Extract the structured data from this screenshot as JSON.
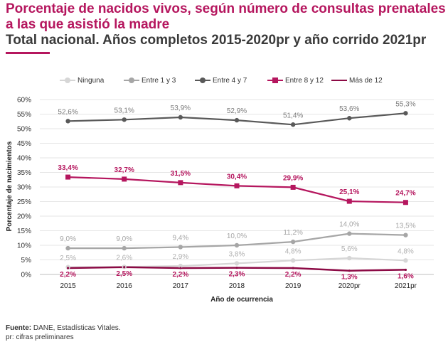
{
  "title": {
    "line1": "Porcentaje de nacidos vivos, según número de consultas prenatales",
    "line2": "a las que asistió la madre",
    "subtitle": "Total nacional. Años completos 2015-2020pr y año corrido 2021pr"
  },
  "footer": {
    "source_label": "Fuente:",
    "source_text": " DANE, Estadísticas Vitales.",
    "note": "pr: cifras preliminares"
  },
  "colors": {
    "title": "#b5165e",
    "subtitle": "#3a3a3a",
    "grid": "#e6e6e6"
  },
  "chart_data": {
    "type": "line",
    "xlabel": "Año de ocurrencia",
    "ylabel": "Porcentaje de nacimientos",
    "x": [
      "2015",
      "2016",
      "2017",
      "2018",
      "2019",
      "2020pr",
      "2021pr"
    ],
    "ylim": [
      0,
      60
    ],
    "yticks": [
      "0%",
      "5%",
      "10%",
      "15%",
      "20%",
      "25%",
      "30%",
      "35%",
      "40%",
      "45%",
      "50%",
      "55%",
      "60%"
    ],
    "grid": true,
    "legend_position": "top",
    "series": [
      {
        "name": "Ninguna",
        "color": "#d6d6d6",
        "values": [
          2.5,
          2.6,
          2.9,
          3.8,
          4.8,
          5.6,
          4.8
        ],
        "labels": [
          "2,5%",
          "2,6%",
          "2,9%",
          "3,8%",
          "4,8%",
          "5,6%",
          "4,8%"
        ],
        "label_pos": "above",
        "label_color": "#b0b0b0"
      },
      {
        "name": "Entre 1 y 3",
        "color": "#a6a6a6",
        "values": [
          9.0,
          9.0,
          9.4,
          10.0,
          11.2,
          14.0,
          13.5
        ],
        "labels": [
          "9,0%",
          "9,0%",
          "9,4%",
          "10,0%",
          "11,2%",
          "14,0%",
          "13,5%"
        ],
        "label_pos": "above",
        "label_color": "#a6a6a6"
      },
      {
        "name": "Entre 4 y 7",
        "color": "#595959",
        "values": [
          52.6,
          53.1,
          53.9,
          52.9,
          51.4,
          53.6,
          55.3
        ],
        "labels": [
          "52,6%",
          "53,1%",
          "53,9%",
          "52,9%",
          "51,4%",
          "53,6%",
          "55,3%"
        ],
        "label_pos": "above",
        "label_color": "#7a7a7a"
      },
      {
        "name": "Entre 8 y 12",
        "color": "#b5165e",
        "values": [
          33.4,
          32.7,
          31.5,
          30.4,
          29.9,
          25.1,
          24.7
        ],
        "labels": [
          "33,4%",
          "32,7%",
          "31,5%",
          "30,4%",
          "29,9%",
          "25,1%",
          "24,7%"
        ],
        "label_pos": "above",
        "label_color": "#b5165e"
      },
      {
        "name": "Más de 12",
        "color": "#8c0a45",
        "values": [
          2.2,
          2.5,
          2.2,
          2.3,
          2.2,
          1.3,
          1.6
        ],
        "labels": [
          "2,2%",
          "2,5%",
          "2,2%",
          "2,3%",
          "2,2%",
          "1,3%",
          "1,6%"
        ],
        "label_pos": "below",
        "label_color": "#b5165e"
      }
    ]
  }
}
